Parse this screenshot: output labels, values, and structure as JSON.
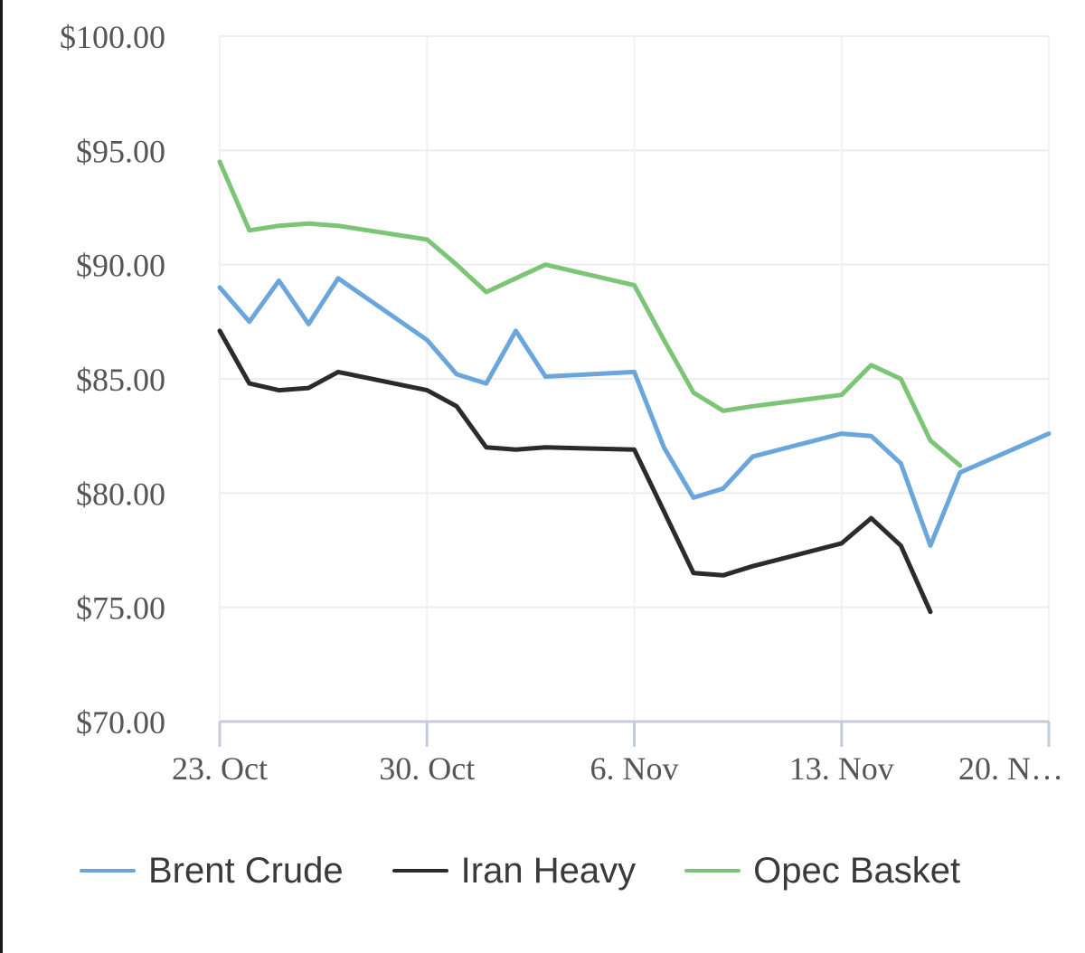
{
  "chart_data": {
    "type": "line",
    "title": "",
    "xlabel": "",
    "ylabel": "",
    "ylim": [
      70,
      100
    ],
    "y_ticks": [
      100,
      95,
      90,
      85,
      80,
      75,
      70
    ],
    "y_tick_labels": [
      "$100.00",
      "$95.00",
      "$90.00",
      "$85.00",
      "$80.00",
      "$75.00",
      "$70.00"
    ],
    "x_range": [
      "2018-10-23",
      "2018-11-20"
    ],
    "x_ticks": [
      "2018-10-23",
      "2018-10-30",
      "2018-11-06",
      "2018-11-13",
      "2018-11-20"
    ],
    "x_tick_labels": [
      "23. Oct",
      "30. Oct",
      "6. Nov",
      "13. Nov",
      "20. N…"
    ],
    "grid": true,
    "legend_position": "bottom",
    "series": [
      {
        "name": "Brent Crude",
        "color": "#6aa6dc",
        "points": [
          [
            "2018-10-23",
            89.0
          ],
          [
            "2018-10-24",
            87.5
          ],
          [
            "2018-10-25",
            89.3
          ],
          [
            "2018-10-26",
            87.4
          ],
          [
            "2018-10-27",
            89.4
          ],
          [
            "2018-10-30",
            86.7
          ],
          [
            "2018-10-31",
            85.2
          ],
          [
            "2018-11-01",
            84.8
          ],
          [
            "2018-11-02",
            87.1
          ],
          [
            "2018-11-03",
            85.1
          ],
          [
            "2018-11-06",
            85.3
          ],
          [
            "2018-11-07",
            82.0
          ],
          [
            "2018-11-08",
            79.8
          ],
          [
            "2018-11-09",
            80.2
          ],
          [
            "2018-11-10",
            81.6
          ],
          [
            "2018-11-13",
            82.6
          ],
          [
            "2018-11-14",
            82.5
          ],
          [
            "2018-11-15",
            81.3
          ],
          [
            "2018-11-16",
            77.7
          ],
          [
            "2018-11-17",
            80.9
          ],
          [
            "2018-11-20",
            82.6
          ]
        ]
      },
      {
        "name": "Iran Heavy",
        "color": "#2b2b2b",
        "points": [
          [
            "2018-10-23",
            87.1
          ],
          [
            "2018-10-24",
            84.8
          ],
          [
            "2018-10-25",
            84.5
          ],
          [
            "2018-10-26",
            84.6
          ],
          [
            "2018-10-27",
            85.3
          ],
          [
            "2018-10-30",
            84.5
          ],
          [
            "2018-10-31",
            83.8
          ],
          [
            "2018-11-01",
            82.0
          ],
          [
            "2018-11-02",
            81.9
          ],
          [
            "2018-11-03",
            82.0
          ],
          [
            "2018-11-06",
            81.9
          ],
          [
            "2018-11-07",
            79.2
          ],
          [
            "2018-11-08",
            76.5
          ],
          [
            "2018-11-09",
            76.4
          ],
          [
            "2018-11-10",
            76.8
          ],
          [
            "2018-11-13",
            77.8
          ],
          [
            "2018-11-14",
            78.9
          ],
          [
            "2018-11-15",
            77.7
          ],
          [
            "2018-11-16",
            74.8
          ]
        ]
      },
      {
        "name": "Opec Basket",
        "color": "#7cc576",
        "points": [
          [
            "2018-10-23",
            94.5
          ],
          [
            "2018-10-24",
            91.5
          ],
          [
            "2018-10-25",
            91.7
          ],
          [
            "2018-10-26",
            91.8
          ],
          [
            "2018-10-27",
            91.7
          ],
          [
            "2018-10-30",
            91.1
          ],
          [
            "2018-10-31",
            90.0
          ],
          [
            "2018-11-01",
            88.8
          ],
          [
            "2018-11-02",
            89.4
          ],
          [
            "2018-11-03",
            90.0
          ],
          [
            "2018-11-06",
            89.1
          ],
          [
            "2018-11-07",
            86.7
          ],
          [
            "2018-11-08",
            84.4
          ],
          [
            "2018-11-09",
            83.6
          ],
          [
            "2018-11-10",
            83.8
          ],
          [
            "2018-11-13",
            84.3
          ],
          [
            "2018-11-14",
            85.6
          ],
          [
            "2018-11-15",
            85.0
          ],
          [
            "2018-11-16",
            82.3
          ],
          [
            "2018-11-17",
            81.2
          ]
        ]
      }
    ]
  }
}
